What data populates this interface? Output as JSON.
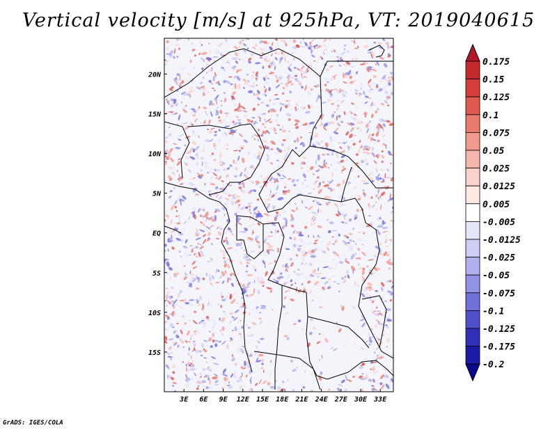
{
  "title": "Vertical velocity [m/s] at 925hPa, VT: 2019040615",
  "credit": "GrADS: IGES/COLA",
  "map": {
    "variable": "Vertical velocity",
    "units": "m/s",
    "level": "925hPa",
    "valid_time": "2019040615",
    "lon_range": [
      0,
      35
    ],
    "lat_range": [
      -20,
      24.5
    ],
    "lon_ticks": [
      "3E",
      "6E",
      "9E",
      "12E",
      "15E",
      "18E",
      "21E",
      "24E",
      "27E",
      "30E",
      "33E"
    ],
    "lon_values": [
      3,
      6,
      9,
      12,
      15,
      18,
      21,
      24,
      27,
      30,
      33
    ],
    "lat_ticks": [
      "20N",
      "15N",
      "10N",
      "5N",
      "EQ",
      "5S",
      "10S",
      "15S"
    ],
    "lat_values": [
      20,
      15,
      10,
      5,
      0,
      -5,
      -10,
      -15
    ]
  },
  "colorbar": {
    "labels": [
      "0.175",
      "0.15",
      "0.125",
      "0.1",
      "0.075",
      "0.05",
      "0.025",
      "0.0125",
      "0.005",
      "-0.005",
      "-0.0125",
      "-0.025",
      "-0.05",
      "-0.075",
      "-0.1",
      "-0.125",
      "-0.175",
      "-0.2"
    ],
    "colors": [
      "#b2182b",
      "#c5282d",
      "#d43d3a",
      "#e05a50",
      "#ea7a6e",
      "#f2998d",
      "#f7b6ad",
      "#fbd2cb",
      "#fde8e4",
      "#ffffff",
      "#e6e6fb",
      "#cdcdf5",
      "#b0b0ee",
      "#9292e6",
      "#7070db",
      "#5050cc",
      "#3030bb",
      "#1a1aa6",
      "#0a0a90"
    ]
  }
}
